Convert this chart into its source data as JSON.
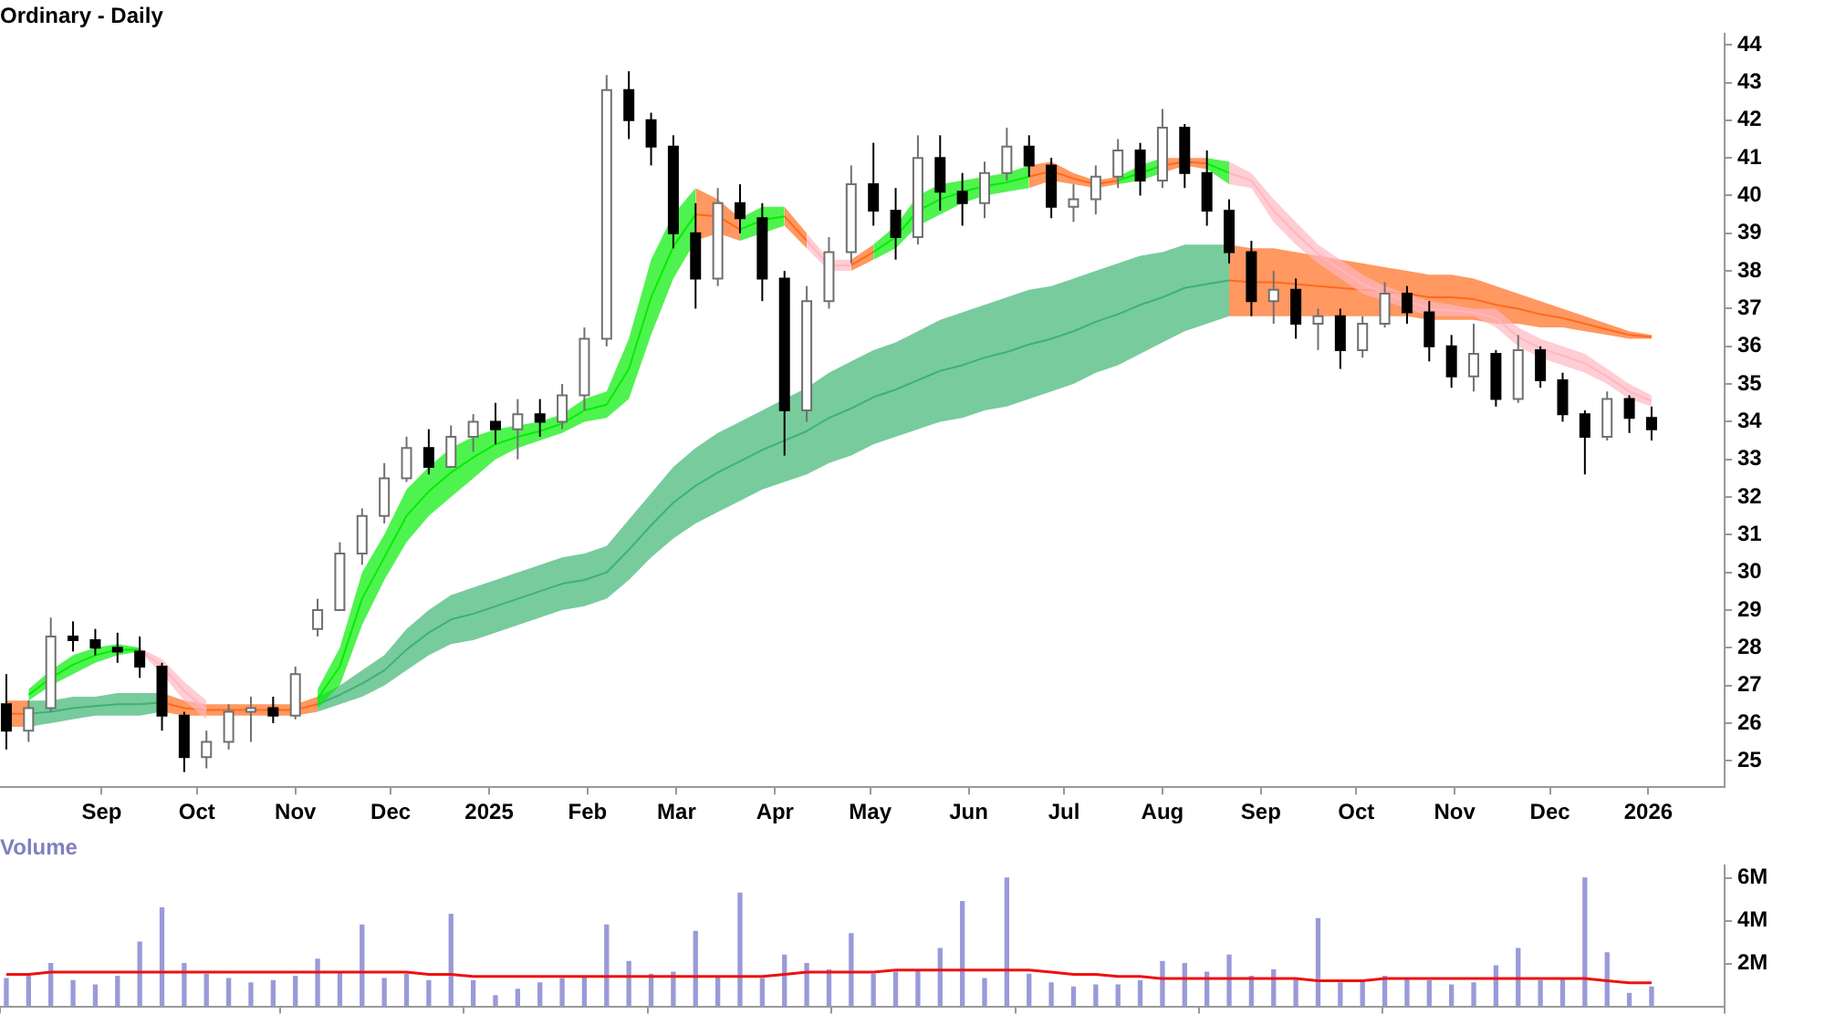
{
  "chart_data": [
    {
      "type": "candlestick",
      "title": "Ordinary - Daily",
      "x": [
        "2024-08-02",
        "2024-08-09",
        "2024-08-16",
        "2024-08-23",
        "2024-08-30",
        "2024-09-06",
        "2024-09-13",
        "2024-09-20",
        "2024-09-27",
        "2024-10-04",
        "2024-10-11",
        "2024-10-18",
        "2024-10-25",
        "2024-11-01",
        "2024-11-08",
        "2024-11-15",
        "2024-11-22",
        "2024-11-29",
        "2024-12-06",
        "2024-12-13",
        "2024-12-20",
        "2024-12-27",
        "2025-01-03",
        "2025-01-10",
        "2025-01-17",
        "2025-01-24",
        "2025-01-31",
        "2025-02-07",
        "2025-02-14",
        "2025-02-21",
        "2025-02-28",
        "2025-03-07",
        "2025-03-14",
        "2025-03-21",
        "2025-03-28",
        "2025-04-04",
        "2025-04-11",
        "2025-04-18",
        "2025-04-25",
        "2025-05-02",
        "2025-05-09",
        "2025-05-16",
        "2025-05-23",
        "2025-05-30",
        "2025-06-06",
        "2025-06-13",
        "2025-06-20",
        "2025-06-27",
        "2025-07-04",
        "2025-07-11",
        "2025-07-18",
        "2025-07-25",
        "2025-08-01",
        "2025-08-08",
        "2025-08-15",
        "2025-08-22",
        "2025-08-29",
        "2025-09-05",
        "2025-09-12",
        "2025-09-19",
        "2025-09-26",
        "2025-10-03",
        "2025-10-10",
        "2025-10-17",
        "2025-10-24",
        "2025-10-31",
        "2025-11-07",
        "2025-11-14",
        "2025-11-21",
        "2025-11-28",
        "2025-12-05",
        "2025-12-12",
        "2025-12-19",
        "2025-12-26",
        "2026-01-02"
      ],
      "ohlc": [
        [
          26.5,
          27.3,
          25.3,
          25.8
        ],
        [
          25.8,
          26.6,
          25.5,
          26.4
        ],
        [
          26.4,
          28.8,
          26.3,
          28.3
        ],
        [
          28.3,
          28.7,
          27.9,
          28.2
        ],
        [
          28.2,
          28.5,
          27.8,
          28.0
        ],
        [
          28.0,
          28.4,
          27.6,
          27.9
        ],
        [
          27.9,
          28.3,
          27.2,
          27.5
        ],
        [
          27.5,
          27.6,
          25.8,
          26.2
        ],
        [
          26.2,
          26.3,
          24.7,
          25.1
        ],
        [
          25.1,
          25.8,
          24.8,
          25.5
        ],
        [
          25.5,
          26.5,
          25.3,
          26.3
        ],
        [
          26.3,
          26.7,
          25.5,
          26.4
        ],
        [
          26.4,
          26.7,
          26.0,
          26.2
        ],
        [
          26.2,
          27.5,
          26.1,
          27.3
        ],
        [
          28.5,
          29.3,
          28.3,
          29.0
        ],
        [
          29.0,
          30.8,
          29.0,
          30.5
        ],
        [
          30.5,
          31.7,
          30.2,
          31.5
        ],
        [
          31.5,
          32.9,
          31.3,
          32.5
        ],
        [
          32.5,
          33.6,
          32.4,
          33.3
        ],
        [
          33.3,
          33.8,
          32.6,
          32.8
        ],
        [
          32.8,
          33.9,
          32.8,
          33.6
        ],
        [
          33.6,
          34.2,
          33.2,
          34.0
        ],
        [
          34.0,
          34.5,
          33.4,
          33.8
        ],
        [
          33.8,
          34.6,
          33.0,
          34.2
        ],
        [
          34.2,
          34.6,
          33.6,
          34.0
        ],
        [
          34.0,
          35.0,
          33.8,
          34.7
        ],
        [
          34.7,
          36.5,
          34.3,
          36.2
        ],
        [
          36.2,
          43.2,
          36.0,
          42.8
        ],
        [
          42.8,
          43.3,
          41.5,
          42.0
        ],
        [
          42.0,
          42.2,
          40.8,
          41.3
        ],
        [
          41.3,
          41.6,
          38.6,
          39.0
        ],
        [
          39.0,
          39.8,
          37.0,
          37.8
        ],
        [
          37.8,
          40.2,
          37.6,
          39.8
        ],
        [
          39.8,
          40.3,
          39.0,
          39.4
        ],
        [
          39.4,
          39.8,
          37.2,
          37.8
        ],
        [
          37.8,
          38.0,
          33.1,
          34.3
        ],
        [
          34.3,
          37.6,
          34.0,
          37.2
        ],
        [
          37.2,
          38.9,
          37.0,
          38.5
        ],
        [
          38.5,
          40.8,
          38.2,
          40.3
        ],
        [
          40.3,
          41.4,
          39.2,
          39.6
        ],
        [
          39.6,
          40.2,
          38.3,
          38.9
        ],
        [
          38.9,
          41.6,
          38.7,
          41.0
        ],
        [
          41.0,
          41.6,
          39.6,
          40.1
        ],
        [
          40.1,
          40.6,
          39.2,
          39.8
        ],
        [
          39.8,
          40.9,
          39.4,
          40.6
        ],
        [
          40.6,
          41.8,
          40.4,
          41.3
        ],
        [
          41.3,
          41.6,
          40.5,
          40.8
        ],
        [
          40.8,
          41.0,
          39.4,
          39.7
        ],
        [
          39.7,
          40.3,
          39.3,
          39.9
        ],
        [
          39.9,
          40.8,
          39.5,
          40.5
        ],
        [
          40.5,
          41.5,
          40.2,
          41.2
        ],
        [
          41.2,
          41.4,
          40.0,
          40.4
        ],
        [
          40.4,
          42.3,
          40.2,
          41.8
        ],
        [
          41.8,
          41.9,
          40.2,
          40.6
        ],
        [
          40.6,
          41.2,
          39.2,
          39.6
        ],
        [
          39.6,
          39.9,
          38.2,
          38.5
        ],
        [
          38.5,
          38.8,
          36.8,
          37.2
        ],
        [
          37.2,
          38.0,
          36.6,
          37.5
        ],
        [
          37.5,
          37.8,
          36.2,
          36.6
        ],
        [
          36.6,
          37.0,
          35.9,
          36.8
        ],
        [
          36.8,
          37.0,
          35.4,
          35.9
        ],
        [
          35.9,
          36.8,
          35.7,
          36.6
        ],
        [
          36.6,
          37.7,
          36.5,
          37.4
        ],
        [
          37.4,
          37.6,
          36.6,
          36.9
        ],
        [
          36.9,
          37.2,
          35.6,
          36.0
        ],
        [
          36.0,
          36.3,
          34.9,
          35.2
        ],
        [
          35.2,
          36.6,
          34.8,
          35.8
        ],
        [
          35.8,
          35.9,
          34.4,
          34.6
        ],
        [
          34.6,
          36.3,
          34.5,
          35.9
        ],
        [
          35.9,
          36.0,
          34.9,
          35.1
        ],
        [
          35.1,
          35.3,
          34.0,
          34.2
        ],
        [
          34.2,
          34.3,
          32.6,
          33.6
        ],
        [
          33.6,
          34.8,
          33.5,
          34.6
        ],
        [
          34.6,
          34.7,
          33.7,
          34.1
        ],
        [
          34.1,
          34.4,
          33.5,
          33.8
        ]
      ],
      "series": [
        {
          "type": "line",
          "color": "#3cb371",
          "values": [
            null,
            26.25,
            26.3,
            26.4,
            26.45,
            26.5,
            26.5,
            26.55,
            null,
            null,
            null,
            null,
            null,
            null,
            26.5,
            26.75,
            27.05,
            27.4,
            27.95,
            28.4,
            28.75,
            28.9,
            29.1,
            29.3,
            29.5,
            29.7,
            29.8,
            30.0,
            30.6,
            31.25,
            31.85,
            32.3,
            32.65,
            32.95,
            33.25,
            33.5,
            33.75,
            34.1,
            34.35,
            34.65,
            34.85,
            35.1,
            35.35,
            35.5,
            35.7,
            35.85,
            36.05,
            36.2,
            36.4,
            36.65,
            36.85,
            37.1,
            37.3,
            37.55,
            37.65,
            37.75,
            null,
            null,
            null,
            null,
            null,
            null,
            null,
            null,
            null,
            null,
            null,
            null,
            null,
            null,
            null,
            null,
            null,
            null,
            null
          ],
          "lower": [
            null,
            25.9,
            26.0,
            26.1,
            26.2,
            26.2,
            26.2,
            26.3,
            null,
            null,
            null,
            null,
            null,
            null,
            26.3,
            26.5,
            26.7,
            27.0,
            27.4,
            27.8,
            28.1,
            28.2,
            28.4,
            28.6,
            28.8,
            29.0,
            29.1,
            29.3,
            29.8,
            30.4,
            30.9,
            31.3,
            31.6,
            31.9,
            32.2,
            32.4,
            32.6,
            32.9,
            33.1,
            33.4,
            33.6,
            33.8,
            34.0,
            34.1,
            34.3,
            34.4,
            34.6,
            34.8,
            35.0,
            35.3,
            35.5,
            35.8,
            36.1,
            36.4,
            36.6,
            36.8,
            null,
            null,
            null,
            null,
            null,
            null,
            null,
            null,
            null,
            null,
            null,
            null,
            null,
            null,
            null,
            null,
            null,
            null,
            null
          ],
          "upper": [
            null,
            26.6,
            26.6,
            26.7,
            26.7,
            26.8,
            26.8,
            26.8,
            null,
            null,
            null,
            null,
            null,
            null,
            26.7,
            27.0,
            27.4,
            27.8,
            28.5,
            29.0,
            29.4,
            29.6,
            29.8,
            30.0,
            30.2,
            30.4,
            30.5,
            30.7,
            31.4,
            32.1,
            32.8,
            33.3,
            33.7,
            34.0,
            34.3,
            34.6,
            34.9,
            35.3,
            35.6,
            35.9,
            36.1,
            36.4,
            36.7,
            36.9,
            37.1,
            37.3,
            37.5,
            37.6,
            37.8,
            38.0,
            38.2,
            38.4,
            38.5,
            38.7,
            38.7,
            38.7,
            null,
            null,
            null,
            null,
            null,
            null,
            null,
            null,
            null,
            null,
            null,
            null,
            null,
            null,
            null,
            null,
            null,
            null,
            null
          ]
        },
        {
          "type": "line",
          "color": "#ff6a1a",
          "values": [
            26.25,
            26.25,
            null,
            null,
            null,
            null,
            null,
            26.55,
            26.4,
            26.35,
            26.35,
            26.35,
            26.35,
            26.35,
            26.5,
            null,
            null,
            null,
            null,
            null,
            null,
            null,
            null,
            null,
            null,
            null,
            null,
            null,
            null,
            null,
            null,
            null,
            null,
            null,
            null,
            null,
            null,
            null,
            null,
            null,
            null,
            null,
            null,
            null,
            null,
            null,
            null,
            null,
            null,
            null,
            null,
            null,
            null,
            null,
            null,
            37.75,
            37.7,
            37.7,
            37.65,
            37.6,
            37.55,
            37.5,
            37.45,
            37.4,
            37.3,
            37.3,
            37.25,
            37.1,
            37.0,
            36.85,
            36.75,
            36.6,
            36.45,
            36.3,
            36.25
          ],
          "lower": [
            25.9,
            25.9,
            null,
            null,
            null,
            null,
            null,
            26.3,
            26.2,
            26.2,
            26.2,
            26.2,
            26.2,
            26.2,
            26.3,
            null,
            null,
            null,
            null,
            null,
            null,
            null,
            null,
            null,
            null,
            null,
            null,
            null,
            null,
            null,
            null,
            null,
            null,
            null,
            null,
            null,
            null,
            null,
            null,
            null,
            null,
            null,
            null,
            null,
            null,
            null,
            null,
            null,
            null,
            null,
            null,
            null,
            null,
            null,
            null,
            36.8,
            36.8,
            36.8,
            36.8,
            36.8,
            36.8,
            36.8,
            36.8,
            36.8,
            36.7,
            36.7,
            36.7,
            36.6,
            36.6,
            36.5,
            36.5,
            36.4,
            36.3,
            36.2,
            36.2
          ],
          "upper": [
            26.6,
            26.6,
            null,
            null,
            null,
            null,
            null,
            26.8,
            26.6,
            26.5,
            26.5,
            26.5,
            26.5,
            26.5,
            26.7,
            null,
            null,
            null,
            null,
            null,
            null,
            null,
            null,
            null,
            null,
            null,
            null,
            null,
            null,
            null,
            null,
            null,
            null,
            null,
            null,
            null,
            null,
            null,
            null,
            null,
            null,
            null,
            null,
            null,
            null,
            null,
            null,
            null,
            null,
            null,
            null,
            null,
            null,
            null,
            null,
            38.7,
            38.6,
            38.6,
            38.5,
            38.4,
            38.3,
            38.2,
            38.1,
            38.0,
            37.9,
            37.9,
            37.8,
            37.6,
            37.4,
            37.2,
            37.0,
            36.8,
            36.6,
            36.4,
            36.3
          ]
        },
        {
          "type": "line",
          "color": "#00ee00",
          "values": [
            null,
            26.75,
            27.2,
            27.55,
            27.8,
            27.95,
            27.95,
            null,
            null,
            null,
            null,
            null,
            null,
            null,
            26.65,
            27.5,
            29.3,
            30.4,
            31.5,
            32.15,
            32.65,
            33.05,
            33.4,
            33.6,
            33.75,
            33.95,
            34.3,
            34.45,
            35.4,
            37.3,
            38.65,
            39.5,
            null,
            39.1,
            39.35,
            39.45,
            null,
            null,
            null,
            38.5,
            38.9,
            39.6,
            39.9,
            40.1,
            40.25,
            40.35,
            40.5,
            null,
            null,
            null,
            40.4,
            40.6,
            40.8,
            null,
            40.85,
            40.6,
            null,
            null,
            null,
            null,
            null,
            null,
            null,
            null,
            null,
            null,
            null,
            null,
            null,
            null,
            null,
            null,
            null,
            null,
            null
          ],
          "lower": [
            null,
            26.6,
            27.0,
            27.3,
            27.6,
            27.8,
            27.9,
            null,
            null,
            null,
            null,
            null,
            null,
            null,
            26.4,
            27.0,
            28.6,
            29.8,
            30.8,
            31.5,
            32.0,
            32.5,
            33.0,
            33.3,
            33.5,
            33.7,
            34.0,
            34.1,
            34.6,
            36.3,
            37.8,
            38.8,
            null,
            38.8,
            39.0,
            39.2,
            null,
            null,
            null,
            38.3,
            38.6,
            39.2,
            39.5,
            39.8,
            40.0,
            40.1,
            40.2,
            null,
            null,
            null,
            40.3,
            40.4,
            40.6,
            null,
            40.7,
            40.3,
            null,
            null,
            null,
            null,
            null,
            null,
            null,
            null,
            null,
            null,
            null,
            null,
            null,
            null,
            null,
            null,
            null,
            null,
            null
          ],
          "upper": [
            null,
            26.9,
            27.4,
            27.8,
            28.0,
            28.1,
            28.0,
            null,
            null,
            null,
            null,
            null,
            null,
            null,
            26.9,
            28.0,
            30.0,
            31.0,
            32.2,
            32.8,
            33.3,
            33.6,
            33.8,
            33.9,
            34.0,
            34.2,
            34.6,
            34.8,
            36.2,
            38.3,
            39.5,
            40.2,
            null,
            39.4,
            39.7,
            39.7,
            null,
            null,
            null,
            38.7,
            39.2,
            40.0,
            40.3,
            40.4,
            40.5,
            40.6,
            40.8,
            null,
            null,
            null,
            40.5,
            40.8,
            41.0,
            null,
            41.0,
            40.9,
            null,
            null,
            null,
            null,
            null,
            null,
            null,
            null,
            null,
            null,
            null,
            null,
            null,
            null,
            null,
            null,
            null,
            null,
            null
          ]
        },
        {
          "type": "line",
          "color": "#ff6a1a",
          "values": [
            null,
            null,
            null,
            null,
            null,
            null,
            null,
            null,
            null,
            null,
            null,
            null,
            null,
            null,
            null,
            null,
            null,
            null,
            null,
            null,
            null,
            null,
            null,
            null,
            null,
            null,
            null,
            null,
            null,
            null,
            null,
            39.5,
            39.45,
            39.1,
            null,
            39.45,
            38.8,
            null,
            38.15,
            38.5,
            null,
            null,
            null,
            null,
            null,
            null,
            40.5,
            40.65,
            40.45,
            40.3,
            40.4,
            null,
            40.8,
            40.9,
            40.85,
            null,
            null,
            null,
            null,
            null,
            null,
            null,
            null,
            null,
            null,
            null,
            null,
            null,
            null,
            null,
            null,
            null,
            null,
            null,
            null
          ],
          "lower": [
            null,
            null,
            null,
            null,
            null,
            null,
            null,
            null,
            null,
            null,
            null,
            null,
            null,
            null,
            null,
            null,
            null,
            null,
            null,
            null,
            null,
            null,
            null,
            null,
            null,
            null,
            null,
            null,
            null,
            null,
            null,
            38.8,
            39.0,
            38.8,
            null,
            39.2,
            38.6,
            null,
            38.0,
            38.3,
            null,
            null,
            null,
            null,
            null,
            null,
            40.2,
            40.4,
            40.3,
            40.2,
            40.3,
            null,
            40.6,
            40.8,
            40.7,
            null,
            null,
            null,
            null,
            null,
            null,
            null,
            null,
            null,
            null,
            null,
            null,
            null,
            null,
            null,
            null,
            null,
            null,
            null,
            null
          ],
          "upper": [
            null,
            null,
            null,
            null,
            null,
            null,
            null,
            null,
            null,
            null,
            null,
            null,
            null,
            null,
            null,
            null,
            null,
            null,
            null,
            null,
            null,
            null,
            null,
            null,
            null,
            null,
            null,
            null,
            null,
            null,
            null,
            40.2,
            39.9,
            39.4,
            null,
            39.7,
            39.0,
            null,
            38.3,
            38.7,
            null,
            null,
            null,
            null,
            null,
            null,
            40.8,
            40.9,
            40.6,
            40.4,
            40.5,
            null,
            41.0,
            41.0,
            41.0,
            null,
            null,
            null,
            null,
            null,
            null,
            null,
            null,
            null,
            null,
            null,
            null,
            null,
            null,
            null,
            null,
            null,
            null,
            null,
            null
          ]
        },
        {
          "type": "line",
          "color": "#ffb6c1",
          "values": [
            null,
            null,
            null,
            null,
            null,
            null,
            27.95,
            27.5,
            26.85,
            26.35,
            null,
            null,
            null,
            null,
            null,
            null,
            null,
            null,
            null,
            null,
            null,
            null,
            null,
            null,
            null,
            null,
            null,
            null,
            null,
            null,
            null,
            null,
            null,
            null,
            null,
            null,
            38.8,
            38.15,
            38.15,
            null,
            null,
            null,
            null,
            null,
            null,
            null,
            null,
            null,
            null,
            null,
            null,
            null,
            null,
            null,
            null,
            40.6,
            40.4,
            39.6,
            39.0,
            38.45,
            38.05,
            37.65,
            37.4,
            37.2,
            37.0,
            36.95,
            36.9,
            36.75,
            36.25,
            35.95,
            35.75,
            35.55,
            35.2,
            34.8,
            34.55
          ],
          "lower": [
            null,
            null,
            null,
            null,
            null,
            null,
            27.9,
            27.3,
            26.6,
            26.1,
            null,
            null,
            null,
            null,
            null,
            null,
            null,
            null,
            null,
            null,
            null,
            null,
            null,
            null,
            null,
            null,
            null,
            null,
            null,
            null,
            null,
            null,
            null,
            null,
            null,
            null,
            38.6,
            38.0,
            38.0,
            null,
            null,
            null,
            null,
            null,
            null,
            null,
            null,
            null,
            null,
            null,
            null,
            null,
            null,
            null,
            null,
            40.3,
            40.2,
            39.3,
            38.7,
            38.2,
            37.8,
            37.4,
            37.2,
            37.0,
            36.8,
            36.8,
            36.8,
            36.5,
            36.0,
            35.7,
            35.5,
            35.3,
            35.0,
            34.6,
            34.4
          ],
          "upper": [
            null,
            null,
            null,
            null,
            null,
            null,
            28.0,
            27.7,
            27.1,
            26.6,
            null,
            null,
            null,
            null,
            null,
            null,
            null,
            null,
            null,
            null,
            null,
            null,
            null,
            null,
            null,
            null,
            null,
            null,
            null,
            null,
            null,
            null,
            null,
            null,
            null,
            null,
            39.0,
            38.3,
            38.3,
            null,
            null,
            null,
            null,
            null,
            null,
            null,
            null,
            null,
            null,
            null,
            null,
            null,
            null,
            null,
            null,
            40.9,
            40.6,
            39.9,
            39.3,
            38.7,
            38.3,
            37.9,
            37.6,
            37.4,
            37.2,
            37.1,
            37.0,
            37.0,
            36.5,
            36.2,
            36.0,
            35.8,
            35.4,
            35.0,
            34.7
          ]
        }
      ],
      "xlim": [
        "2024-07-31",
        "2026-01-25"
      ],
      "xticks": [
        {
          "value": "2024-09-01",
          "label": "Sep"
        },
        {
          "value": "2024-10-01",
          "label": "Oct"
        },
        {
          "value": "2024-11-01",
          "label": "Nov"
        },
        {
          "value": "2024-12-01",
          "label": "Dec"
        },
        {
          "value": "2025-01-01",
          "label": "2025"
        },
        {
          "value": "2025-02-01",
          "label": "Feb"
        },
        {
          "value": "2025-03-01",
          "label": "Mar"
        },
        {
          "value": "2025-04-01",
          "label": "Apr"
        },
        {
          "value": "2025-05-01",
          "label": "May"
        },
        {
          "value": "2025-06-01",
          "label": "Jun"
        },
        {
          "value": "2025-07-01",
          "label": "Jul"
        },
        {
          "value": "2025-08-01",
          "label": "Aug"
        },
        {
          "value": "2025-09-01",
          "label": "Sep"
        },
        {
          "value": "2025-10-01",
          "label": "Oct"
        },
        {
          "value": "2025-11-01",
          "label": "Nov"
        },
        {
          "value": "2025-12-01",
          "label": "Dec"
        },
        {
          "value": "2026-01-01",
          "label": "2026"
        }
      ],
      "ylim": [
        24.3,
        44.3
      ],
      "yticks": [
        25,
        26,
        27,
        28,
        29,
        30,
        31,
        32,
        33,
        34,
        35,
        36,
        37,
        38,
        39,
        40,
        41,
        42,
        43,
        44
      ]
    },
    {
      "type": "bar",
      "title": "Volume",
      "x": [
        "2024-08-02",
        "2024-08-09",
        "2024-08-16",
        "2024-08-23",
        "2024-08-30",
        "2024-09-06",
        "2024-09-13",
        "2024-09-20",
        "2024-09-27",
        "2024-10-04",
        "2024-10-11",
        "2024-10-18",
        "2024-10-25",
        "2024-11-01",
        "2024-11-08",
        "2024-11-15",
        "2024-11-22",
        "2024-11-29",
        "2024-12-06",
        "2024-12-13",
        "2024-12-20",
        "2024-12-27",
        "2025-01-03",
        "2025-01-10",
        "2025-01-17",
        "2025-01-24",
        "2025-01-31",
        "2025-02-07",
        "2025-02-14",
        "2025-02-21",
        "2025-02-28",
        "2025-03-07",
        "2025-03-14",
        "2025-03-21",
        "2025-03-28",
        "2025-04-04",
        "2025-04-11",
        "2025-04-18",
        "2025-04-25",
        "2025-05-02",
        "2025-05-09",
        "2025-05-16",
        "2025-05-23",
        "2025-05-30",
        "2025-06-06",
        "2025-06-13",
        "2025-06-20",
        "2025-06-27",
        "2025-07-04",
        "2025-07-11",
        "2025-07-18",
        "2025-07-25",
        "2025-08-01",
        "2025-08-08",
        "2025-08-15",
        "2025-08-22",
        "2025-08-29",
        "2025-09-05",
        "2025-09-12",
        "2025-09-19",
        "2025-09-26",
        "2025-10-03",
        "2025-10-10",
        "2025-10-17",
        "2025-10-24",
        "2025-10-31",
        "2025-11-07",
        "2025-11-14",
        "2025-11-21",
        "2025-11-28",
        "2025-12-05",
        "2025-12-12",
        "2025-12-19",
        "2025-12-26",
        "2026-01-02"
      ],
      "series": [
        {
          "type": "bar",
          "color": "#9a9ad8",
          "values": [
            1.3,
            1.5,
            2.0,
            1.2,
            1.0,
            1.4,
            3.0,
            4.6,
            2.0,
            1.5,
            1.3,
            1.1,
            1.2,
            1.4,
            2.2,
            1.6,
            3.8,
            1.3,
            1.5,
            1.2,
            4.3,
            1.2,
            0.5,
            0.8,
            1.1,
            1.3,
            1.4,
            3.8,
            2.1,
            1.5,
            1.6,
            3.5,
            1.4,
            5.3,
            1.3,
            2.4,
            2.0,
            1.7,
            3.4,
            1.5,
            1.6,
            1.7,
            2.7,
            4.9,
            1.3,
            6.0,
            1.5,
            1.1,
            0.9,
            1.0,
            1.0,
            1.2,
            2.1,
            2.0,
            1.6,
            2.4,
            1.4,
            1.7,
            1.3,
            4.1,
            1.1,
            1.2,
            1.4,
            1.3,
            1.2,
            1.0,
            1.1,
            1.9,
            2.7,
            1.2,
            1.3,
            6.0,
            2.5,
            0.6,
            0.9
          ]
        },
        {
          "type": "line",
          "color": "#ee1111",
          "values": [
            1.5,
            1.5,
            1.6,
            1.6,
            1.6,
            1.6,
            1.6,
            1.6,
            1.6,
            1.6,
            1.6,
            1.6,
            1.6,
            1.6,
            1.6,
            1.6,
            1.6,
            1.6,
            1.6,
            1.5,
            1.5,
            1.4,
            1.4,
            1.4,
            1.4,
            1.4,
            1.4,
            1.4,
            1.4,
            1.4,
            1.4,
            1.4,
            1.4,
            1.4,
            1.4,
            1.5,
            1.6,
            1.6,
            1.6,
            1.6,
            1.7,
            1.7,
            1.7,
            1.7,
            1.7,
            1.7,
            1.7,
            1.6,
            1.5,
            1.5,
            1.4,
            1.4,
            1.3,
            1.3,
            1.3,
            1.3,
            1.3,
            1.3,
            1.3,
            1.2,
            1.2,
            1.2,
            1.3,
            1.3,
            1.3,
            1.3,
            1.3,
            1.3,
            1.3,
            1.3,
            1.3,
            1.3,
            1.2,
            1.1,
            1.1
          ]
        }
      ],
      "xlim": [
        "2024-07-31",
        "2026-01-25"
      ],
      "ylim": [
        0,
        6.6
      ],
      "yticks": [
        {
          "value": 2,
          "label": "2M"
        },
        {
          "value": 4,
          "label": "4M"
        },
        {
          "value": 6,
          "label": "6M"
        }
      ],
      "tick_labels": "y"
    }
  ]
}
